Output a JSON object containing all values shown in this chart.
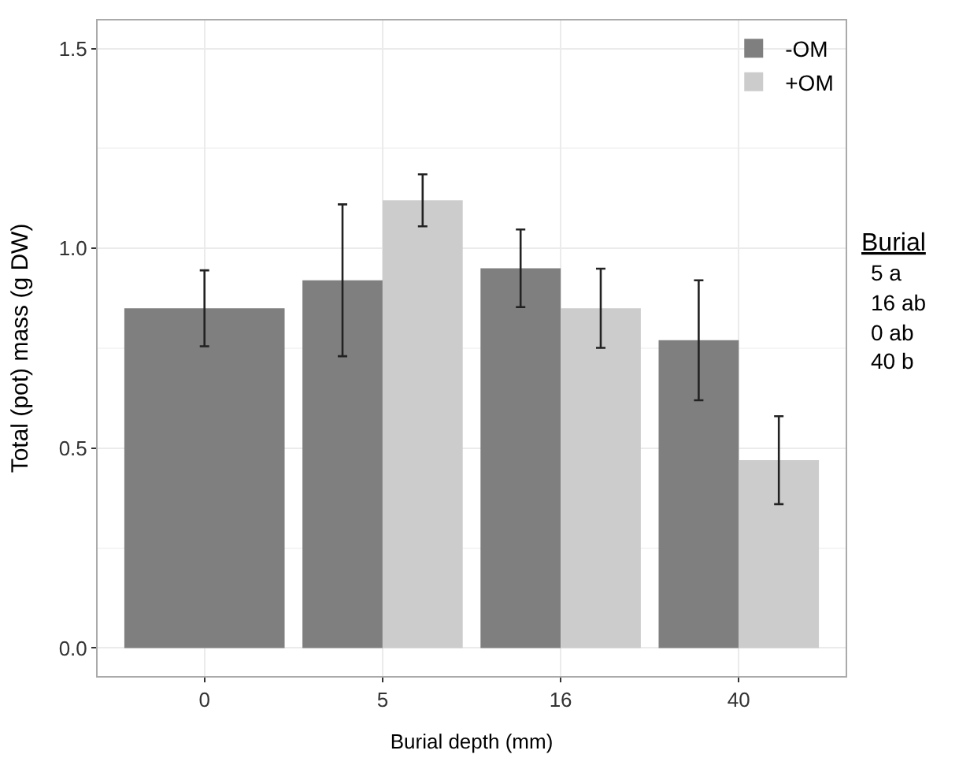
{
  "chart_data": {
    "type": "bar",
    "xlabel": "Burial depth (mm)",
    "ylabel": "Total (pot) mass (g DW)",
    "categories": [
      "0",
      "5",
      "16",
      "40"
    ],
    "series": [
      {
        "name": "-OM",
        "color": "#7f7f7f",
        "values": [
          0.85,
          0.92,
          0.95,
          0.77
        ],
        "errors": [
          0.095,
          0.19,
          0.097,
          0.15
        ]
      },
      {
        "name": "+OM",
        "color": "#cccccc",
        "values": [
          null,
          1.12,
          0.85,
          0.47
        ],
        "errors": [
          null,
          0.065,
          0.099,
          0.11
        ]
      }
    ],
    "ylim": [
      -0.07,
      1.57
    ],
    "yticks": [
      {
        "value": 0,
        "label": "0.0"
      },
      0.5,
      {
        "value": 1,
        "label": "1.0"
      },
      1.5
    ],
    "grid": true,
    "legend": "top right",
    "annotations": [
      "Burial",
      "5 a",
      "16 ab",
      "0 ab",
      "40 b"
    ]
  }
}
